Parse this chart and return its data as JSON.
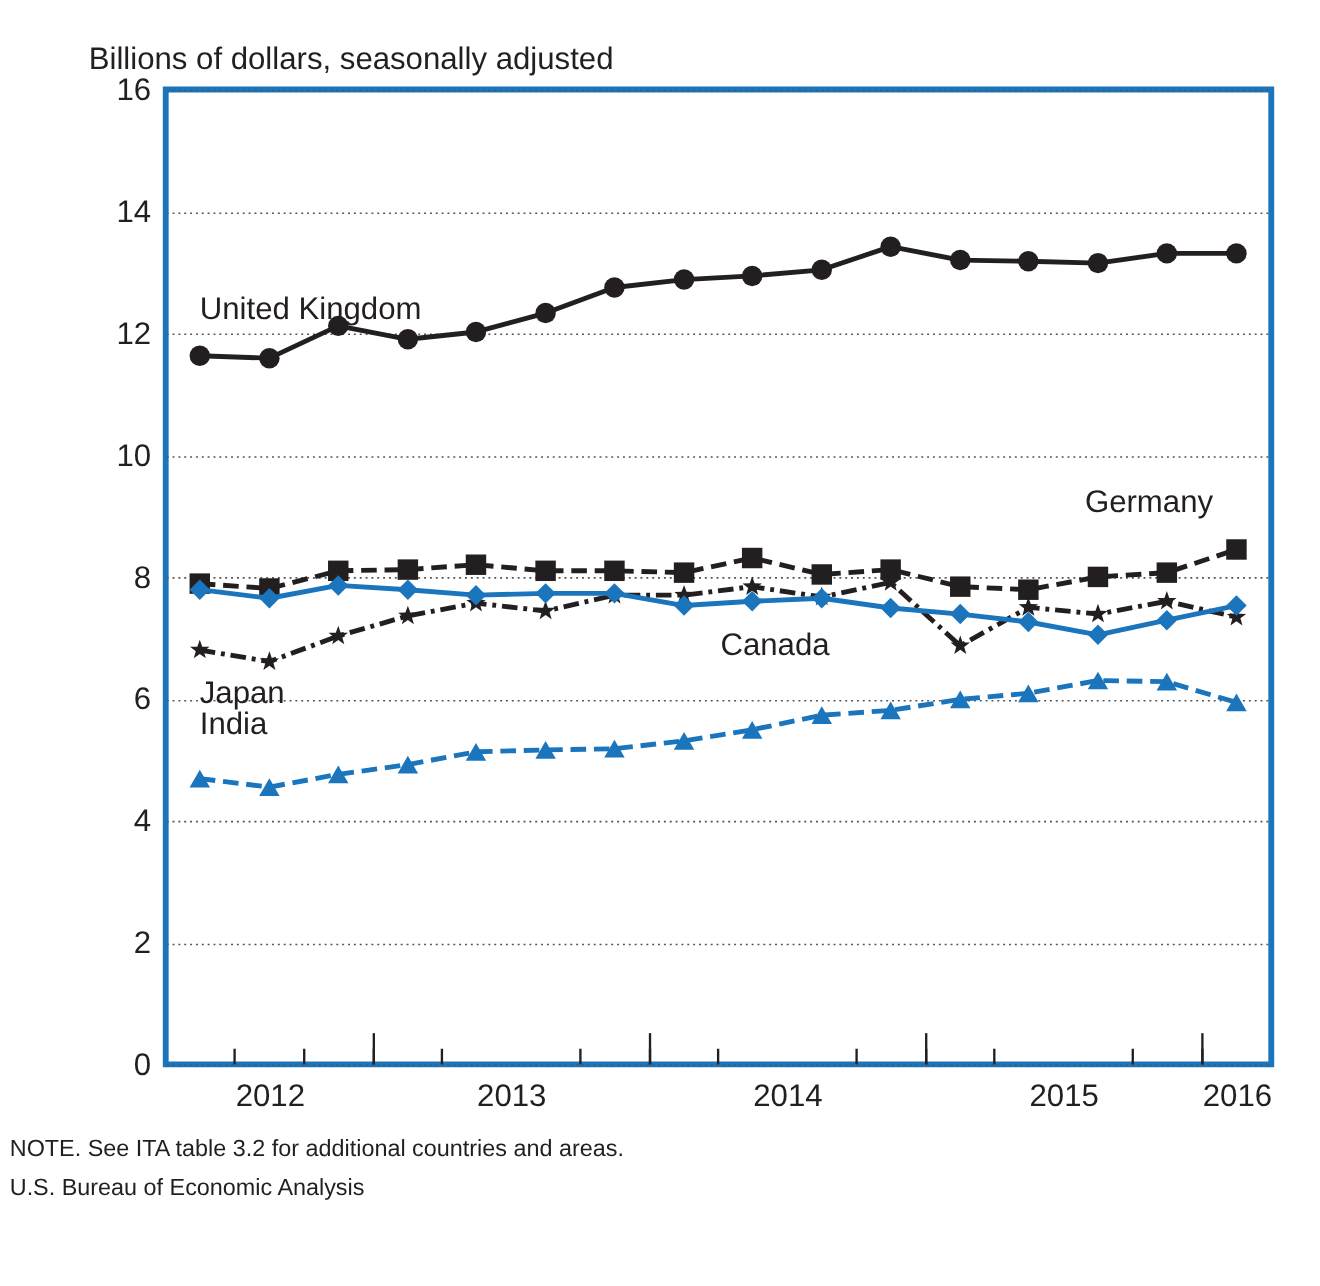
{
  "chart_data": {
    "type": "line",
    "ylabel": "Billions of dollars, seasonally adjusted",
    "x": [
      "2012-05-16",
      "2012-08-16",
      "2012-11-15",
      "2013-02-15",
      "2013-05-16",
      "2013-08-16",
      "2013-11-15",
      "2014-02-15",
      "2014-05-16",
      "2014-08-16",
      "2014-11-15",
      "2015-02-15",
      "2015-05-16",
      "2015-08-16",
      "2015-11-15",
      "2016-02-15"
    ],
    "xlim": [
      "2012-04-01",
      "2016-04-01"
    ],
    "xticks": [
      {
        "value": "2012-07-01",
        "label": null
      },
      {
        "value": "2012-08-16",
        "label": "2012"
      },
      {
        "value": "2012-10-01",
        "label": null
      },
      {
        "value": "2013-01-01",
        "label": null
      },
      {
        "value": "2013-04-01",
        "label": null
      },
      {
        "value": "2013-07-01",
        "label": "2013"
      },
      {
        "value": "2013-10-01",
        "label": null
      },
      {
        "value": "2014-01-01",
        "label": null
      },
      {
        "value": "2014-04-01",
        "label": null
      },
      {
        "value": "2014-07-01",
        "label": "2014"
      },
      {
        "value": "2014-10-01",
        "label": null
      },
      {
        "value": "2015-01-01",
        "label": null
      },
      {
        "value": "2015-04-01",
        "label": null
      },
      {
        "value": "2015-07-01",
        "label": "2015"
      },
      {
        "value": "2015-10-01",
        "label": null
      },
      {
        "value": "2016-01-01",
        "label": null
      },
      {
        "value": "2016-02-15",
        "label": "2016"
      }
    ],
    "ylim": [
      0,
      16
    ],
    "yticks": [
      0,
      2,
      4,
      6,
      8,
      10,
      12,
      14,
      16
    ],
    "grid": "y",
    "legend": false,
    "series": [
      {
        "name": "United Kingdom",
        "color": "#231f20",
        "marker": "circle",
        "line_style": "solid",
        "values": [
          11.63,
          11.59,
          12.12,
          11.9,
          12.02,
          12.33,
          12.75,
          12.88,
          12.94,
          13.04,
          13.42,
          13.2,
          13.18,
          13.15,
          13.31,
          13.31
        ]
      },
      {
        "name": "Germany",
        "color": "#231f20",
        "marker": "square",
        "line_style": "dashed",
        "values": [
          7.89,
          7.81,
          8.1,
          8.12,
          8.2,
          8.1,
          8.1,
          8.07,
          8.31,
          8.04,
          8.12,
          7.84,
          7.79,
          8.0,
          8.07,
          8.45
        ]
      },
      {
        "name": "Japan",
        "color": "#231f20",
        "marker": "star",
        "line_style": "dashdot",
        "values": [
          6.8,
          6.61,
          7.03,
          7.36,
          7.57,
          7.44,
          7.7,
          7.7,
          7.84,
          7.67,
          7.91,
          6.87,
          7.5,
          7.39,
          7.6,
          7.34
        ]
      },
      {
        "name": "Canada",
        "color": "#1a75bc",
        "marker": "diamond",
        "line_style": "solid",
        "values": [
          7.79,
          7.65,
          7.86,
          7.79,
          7.7,
          7.73,
          7.73,
          7.53,
          7.6,
          7.65,
          7.49,
          7.39,
          7.26,
          7.05,
          7.29,
          7.53
        ]
      },
      {
        "name": "India",
        "color": "#1a75bc",
        "marker": "triangle",
        "line_style": "dashed",
        "values": [
          4.69,
          4.55,
          4.76,
          4.92,
          5.13,
          5.16,
          5.18,
          5.31,
          5.49,
          5.73,
          5.81,
          5.99,
          6.09,
          6.3,
          6.28,
          5.94
        ]
      }
    ],
    "annotations": [
      "NOTE. See ITA table 3.2 for additional countries and areas.",
      "U.S. Bureau of Economic Analysis"
    ]
  }
}
